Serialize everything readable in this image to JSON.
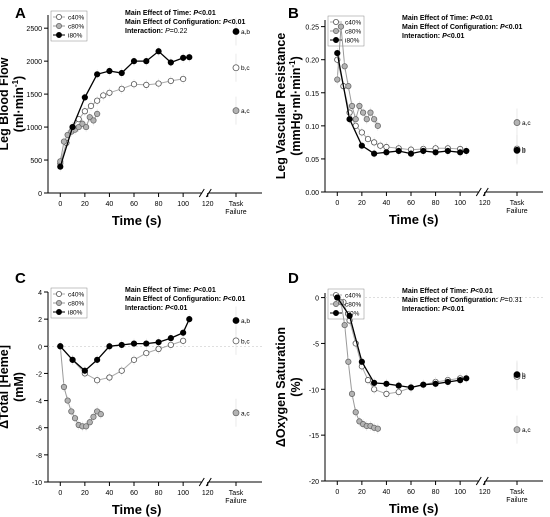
{
  "chart_data": [
    {
      "panel": "A",
      "type": "line",
      "ylabel": "Leg Blood Flow",
      "ylabel_unit": "(ml·min",
      "ylabel_unit_sup": "-1",
      "ylabel_unit_close": ")",
      "xlabel": "Time (s)",
      "ylim": [
        0,
        2700
      ],
      "yticks": [
        0,
        500,
        1000,
        1500,
        2000,
        2500
      ],
      "xticks": [
        0,
        20,
        40,
        60,
        80,
        100,
        120
      ],
      "xlim": [
        -10,
        130
      ],
      "task_failure_label": "Task Failure",
      "stats": [
        {
          "prefix": "Main Effect of Time: ",
          "italic": "P",
          "suffix": "<0.01",
          "bold": true
        },
        {
          "prefix": "Main Effect of Configuration: ",
          "italic": "P",
          "suffix": "<0.01",
          "bold": true
        },
        {
          "prefix": "Interaction: ",
          "italic": "P",
          "suffix": "=0.22",
          "bold": false
        }
      ],
      "legend": [
        "c40%",
        "c80%",
        "i80%"
      ],
      "series": [
        {
          "name": "c40%",
          "x": [
            0,
            5,
            10,
            15,
            20,
            25,
            30,
            35,
            40,
            50,
            60,
            70,
            80,
            90,
            100
          ],
          "y": [
            450,
            760,
            1000,
            1120,
            1240,
            1320,
            1400,
            1480,
            1520,
            1580,
            1650,
            1640,
            1660,
            1700,
            1730
          ]
        },
        {
          "name": "c80%",
          "x": [
            0,
            3,
            6,
            9,
            12,
            15,
            18,
            21,
            24,
            27,
            30
          ],
          "y": [
            480,
            780,
            880,
            930,
            960,
            1000,
            1050,
            1000,
            1150,
            1100,
            1200
          ]
        },
        {
          "name": "i80%",
          "x": [
            0,
            10,
            20,
            30,
            40,
            50,
            60,
            70,
            80,
            90,
            100,
            105
          ],
          "y": [
            400,
            1000,
            1450,
            1800,
            1850,
            1820,
            2000,
            2000,
            2150,
            1980,
            2050,
            2060
          ]
        }
      ],
      "task_failure": [
        {
          "name": "c40%",
          "y": 1900,
          "label": "b,c"
        },
        {
          "name": "c80%",
          "y": 1250,
          "label": "a,c"
        },
        {
          "name": "i80%",
          "y": 2450,
          "label": "a,b"
        }
      ]
    },
    {
      "panel": "B",
      "type": "line",
      "ylabel": "Leg Vascular Resistance",
      "ylabel_unit": "(mmHg·ml·min",
      "ylabel_unit_sup": "-1",
      "ylabel_unit_close": ")",
      "xlabel": "Time (s)",
      "ylim": [
        0,
        0.26
      ],
      "yticks": [
        0.0,
        0.05,
        0.1,
        0.15,
        0.2,
        0.25
      ],
      "xticks": [
        0,
        20,
        40,
        60,
        80,
        100,
        120
      ],
      "xlim": [
        -10,
        130
      ],
      "task_failure_label": "Task Failure",
      "stats": [
        {
          "prefix": "Main Effect of Time: ",
          "italic": "P",
          "suffix": "<0.01",
          "bold": true
        },
        {
          "prefix": "Main Effect of Configuration: ",
          "italic": "P",
          "suffix": "<0.01",
          "bold": true
        },
        {
          "prefix": "Interaction: ",
          "italic": "P",
          "suffix": "<0.01",
          "bold": true
        }
      ],
      "legend": [
        "c40%",
        "c80%",
        "i80%"
      ],
      "series": [
        {
          "name": "c40%",
          "x": [
            0,
            5,
            10,
            15,
            20,
            25,
            30,
            35,
            40,
            50,
            60,
            70,
            80,
            90,
            100
          ],
          "y": [
            0.2,
            0.16,
            0.12,
            0.1,
            0.09,
            0.08,
            0.075,
            0.07,
            0.068,
            0.066,
            0.064,
            0.065,
            0.066,
            0.066,
            0.065
          ]
        },
        {
          "name": "c80%",
          "x": [
            0,
            3,
            6,
            9,
            12,
            15,
            18,
            21,
            24,
            27,
            30,
            33
          ],
          "y": [
            0.17,
            0.25,
            0.19,
            0.16,
            0.13,
            0.11,
            0.13,
            0.12,
            0.11,
            0.12,
            0.11,
            0.1
          ]
        },
        {
          "name": "i80%",
          "x": [
            0,
            10,
            20,
            30,
            40,
            50,
            60,
            70,
            80,
            90,
            100,
            105
          ],
          "y": [
            0.21,
            0.11,
            0.07,
            0.058,
            0.06,
            0.062,
            0.058,
            0.062,
            0.06,
            0.062,
            0.06,
            0.062
          ]
        }
      ],
      "task_failure": [
        {
          "name": "c40%",
          "y": 0.065,
          "label": "b"
        },
        {
          "name": "c80%",
          "y": 0.105,
          "label": "a,c"
        },
        {
          "name": "i80%",
          "y": 0.063,
          "label": "b"
        }
      ]
    },
    {
      "panel": "C",
      "type": "line",
      "ylabel": "ΔTotal [Heme]",
      "ylabel_unit": "(mM)",
      "ylabel_unit_sup": "",
      "ylabel_unit_close": "",
      "xlabel": "Time (s)",
      "ylim": [
        -10,
        4
      ],
      "yticks": [
        -10,
        -8,
        -6,
        -4,
        -2,
        0,
        2,
        4
      ],
      "xticks": [
        0,
        20,
        40,
        60,
        80,
        100,
        120
      ],
      "xlim": [
        -10,
        130
      ],
      "task_failure_label": "Task Failure",
      "stats": [
        {
          "prefix": "Main Effect of Time: ",
          "italic": "P",
          "suffix": "<0.01",
          "bold": true
        },
        {
          "prefix": "Main Effect of Configuration: ",
          "italic": "P",
          "suffix": "<0.01",
          "bold": true
        },
        {
          "prefix": "Interaction: ",
          "italic": "P",
          "suffix": "<0.01",
          "bold": true
        }
      ],
      "legend": [
        "c40%",
        "c80%",
        "i80%"
      ],
      "series": [
        {
          "name": "c40%",
          "x": [
            0,
            10,
            20,
            30,
            40,
            50,
            60,
            70,
            80,
            90,
            100
          ],
          "y": [
            0,
            -1.0,
            -2.0,
            -2.5,
            -2.3,
            -1.8,
            -1.0,
            -0.5,
            -0.2,
            0.1,
            0.4
          ]
        },
        {
          "name": "c80%",
          "x": [
            0,
            3,
            6,
            9,
            12,
            15,
            18,
            21,
            24,
            27,
            30,
            33
          ],
          "y": [
            0,
            -3.0,
            -4.0,
            -4.8,
            -5.3,
            -5.8,
            -5.9,
            -5.9,
            -5.6,
            -5.2,
            -4.8,
            -5.0
          ]
        },
        {
          "name": "i80%",
          "x": [
            0,
            10,
            20,
            30,
            40,
            50,
            60,
            70,
            80,
            90,
            100,
            105
          ],
          "y": [
            0,
            -1.0,
            -1.8,
            -1.0,
            0,
            0.1,
            0.2,
            0.2,
            0.3,
            0.6,
            1.0,
            2.0
          ]
        }
      ],
      "task_failure": [
        {
          "name": "c40%",
          "y": 0.4,
          "label": "b,c"
        },
        {
          "name": "c80%",
          "y": -4.9,
          "label": "a,c"
        },
        {
          "name": "i80%",
          "y": 1.9,
          "label": "a,b"
        }
      ]
    },
    {
      "panel": "D",
      "type": "line",
      "ylabel": "ΔOxygen Saturation",
      "ylabel_unit": "(%)",
      "ylabel_unit_sup": "",
      "ylabel_unit_close": "",
      "xlabel": "Time (s)",
      "ylim": [
        -20,
        0.5
      ],
      "yticks": [
        -20,
        -15,
        -10,
        -5,
        0
      ],
      "xticks": [
        0,
        20,
        40,
        60,
        80,
        100,
        120
      ],
      "xlim": [
        -10,
        130
      ],
      "task_failure_label": "Task Failure",
      "stats": [
        {
          "prefix": "Main Effect of Time: ",
          "italic": "P",
          "suffix": "<0.01",
          "bold": true
        },
        {
          "prefix": "Main Effect of Configuration: ",
          "italic": "P",
          "suffix": "=0.31",
          "bold": false
        },
        {
          "prefix": "Interaction: ",
          "italic": "P",
          "suffix": "<0.01",
          "bold": true
        }
      ],
      "legend": [
        "c40%",
        "c80%",
        "i80%"
      ],
      "series": [
        {
          "name": "c40%",
          "x": [
            0,
            5,
            10,
            15,
            20,
            25,
            30,
            40,
            50,
            60,
            70,
            80,
            90,
            100
          ],
          "y": [
            0,
            -0.5,
            -2.5,
            -5.0,
            -7.5,
            -9.0,
            -10.0,
            -10.5,
            -10.3,
            -9.8,
            -9.5,
            -9.2,
            -9.0,
            -8.8
          ]
        },
        {
          "name": "c80%",
          "x": [
            0,
            3,
            6,
            9,
            12,
            15,
            18,
            21,
            24,
            27,
            30,
            33
          ],
          "y": [
            0,
            -0.5,
            -3.0,
            -7.0,
            -10.5,
            -12.5,
            -13.5,
            -13.8,
            -14.0,
            -14.0,
            -14.2,
            -14.3
          ]
        },
        {
          "name": "i80%",
          "x": [
            0,
            10,
            20,
            30,
            40,
            50,
            60,
            70,
            80,
            90,
            100,
            105
          ],
          "y": [
            0,
            -2.0,
            -7.0,
            -9.3,
            -9.4,
            -9.6,
            -9.8,
            -9.5,
            -9.4,
            -9.2,
            -9.0,
            -8.8
          ]
        }
      ],
      "task_failure": [
        {
          "name": "c40%",
          "y": -8.6,
          "label": "b"
        },
        {
          "name": "c80%",
          "y": -14.4,
          "label": "a,c"
        },
        {
          "name": "i80%",
          "y": -8.4,
          "label": "b"
        }
      ]
    }
  ]
}
